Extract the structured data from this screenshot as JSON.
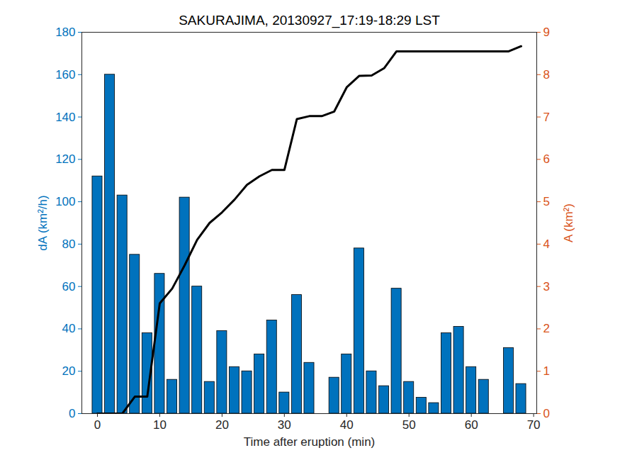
{
  "chart_data": {
    "type": "bar",
    "title": "SAKURAJIMA, 20130927_17:19-18:29 LST",
    "xlabel": "Time after eruption (min)",
    "ylabel": "dA (km²/h)",
    "y2label": "A (km²)",
    "x": [
      0,
      2,
      4,
      6,
      8,
      10,
      12,
      14,
      16,
      18,
      20,
      22,
      24,
      26,
      28,
      30,
      32,
      34,
      36,
      38,
      40,
      42,
      44,
      46,
      48,
      50,
      52,
      54,
      56,
      58,
      60,
      62,
      64,
      66,
      68
    ],
    "series": [
      {
        "type": "bar",
        "color": "#0072BD",
        "values": [
          112,
          160,
          103,
          75,
          38,
          66,
          16,
          102,
          60,
          15,
          39,
          22,
          20,
          28,
          44,
          10,
          56,
          24,
          0,
          17,
          28,
          78,
          20,
          13,
          59,
          15,
          7.5,
          5,
          38,
          41,
          22,
          16,
          0,
          31,
          14
        ]
      },
      {
        "type": "line",
        "axis": "y2",
        "color": "#000000",
        "values": [
          0,
          0,
          0,
          0.4,
          0.4,
          2.6,
          2.95,
          3.5,
          4.1,
          4.5,
          4.75,
          5.05,
          5.4,
          5.6,
          5.75,
          5.75,
          6.95,
          7.02,
          7.02,
          7.13,
          7.7,
          7.97,
          7.98,
          8.15,
          8.55,
          8.55,
          8.55,
          8.55,
          8.55,
          8.55,
          8.55,
          8.55,
          8.55,
          8.55,
          8.67
        ]
      }
    ],
    "xlim": [
      -2.5,
      70.5
    ],
    "xticks": [
      0,
      10,
      20,
      30,
      40,
      50,
      60,
      70
    ],
    "ylim": [
      0,
      180
    ],
    "yticks": [
      0,
      20,
      40,
      60,
      80,
      100,
      120,
      140,
      160,
      180
    ],
    "y2lim": [
      0,
      9
    ],
    "y2ticks": [
      0,
      1,
      2,
      3,
      4,
      5,
      6,
      7,
      8,
      9
    ],
    "grid": false
  }
}
